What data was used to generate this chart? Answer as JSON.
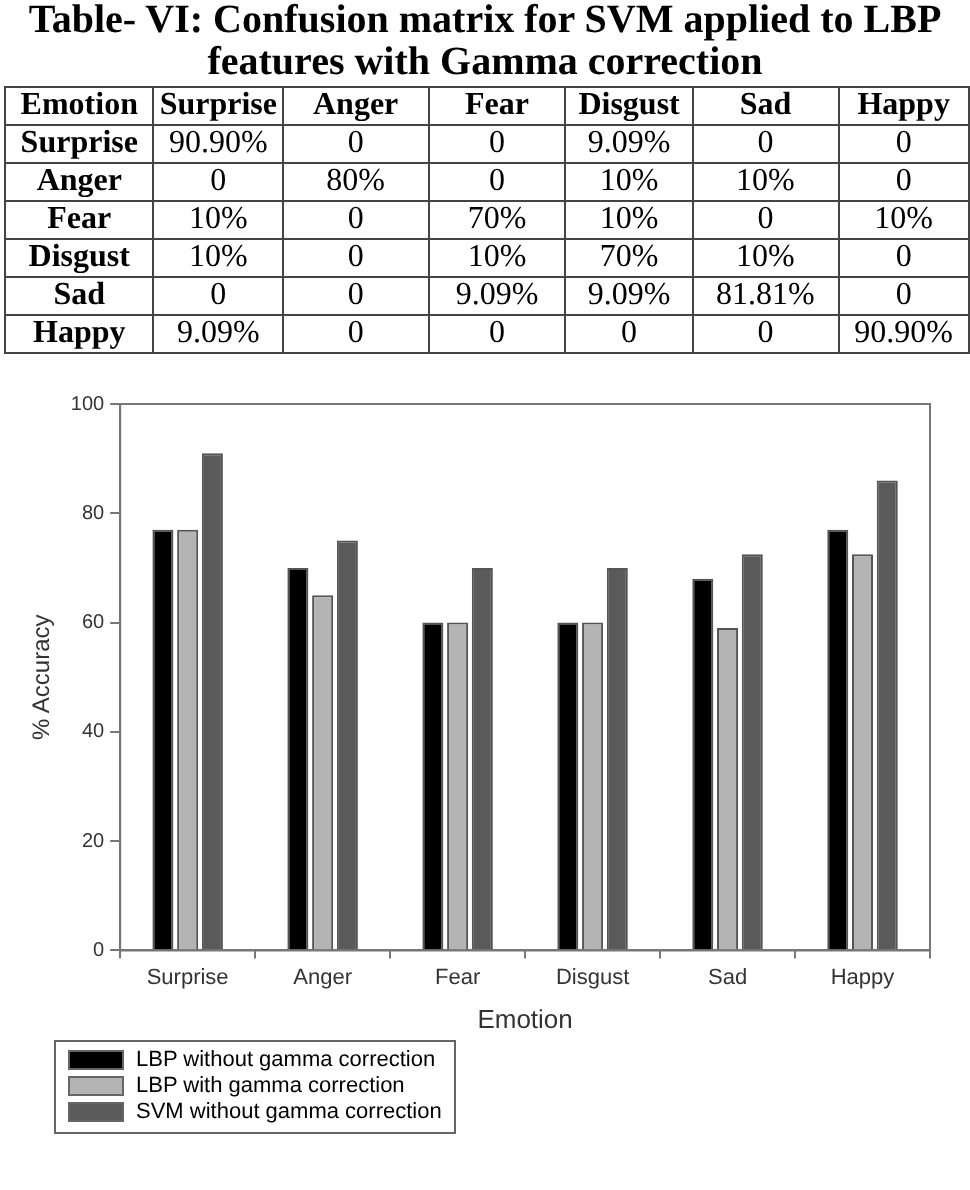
{
  "chart_data": [
    {
      "type": "other",
      "title": "Table- VI: Confusion matrix for SVM applied to LBP features with Gamma correction",
      "ylabel": "Emotion",
      "categories": [
        "Surprise",
        "Anger",
        "Fear",
        "Disgust",
        "Sad",
        "Happy"
      ],
      "y_categories": [
        "Surprise",
        "Anger",
        "Fear",
        "Disgust",
        "Sad",
        "Happy"
      ],
      "cell_labels": [
        [
          "90.90%",
          "0",
          "0",
          "9.09%",
          "0",
          "0"
        ],
        [
          "0",
          "80%",
          "0",
          "10%",
          "10%",
          "0"
        ],
        [
          "10%",
          "0",
          "70%",
          "10%",
          "0",
          "10%"
        ],
        [
          "10%",
          "0",
          "10%",
          "70%",
          "10%",
          "0"
        ],
        [
          "0",
          "0",
          "9.09%",
          "9.09%",
          "81.81%",
          "0"
        ],
        [
          "9.09%",
          "0",
          "0",
          "0",
          "0",
          "90.90%"
        ]
      ]
    },
    {
      "type": "bar",
      "xlabel": "Emotion",
      "ylabel": "% Accuracy",
      "categories": [
        "Surprise",
        "Anger",
        "Fear",
        "Disgust",
        "Sad",
        "Happy"
      ],
      "series": [
        {
          "name": "LBP without gamma correction",
          "color": "#000000",
          "values": [
            77,
            70,
            60,
            60,
            68,
            77
          ]
        },
        {
          "name": "LBP with gamma correction",
          "color": "#b4b4b4",
          "values": [
            77,
            65,
            60,
            60,
            59,
            72.5
          ]
        },
        {
          "name": "SVM without gamma correction",
          "color": "#5a5a5a",
          "values": [
            91,
            75,
            70,
            70,
            72.5,
            86
          ]
        }
      ],
      "ylim": [
        0,
        100
      ],
      "yticks": [
        0,
        20,
        40,
        60,
        80,
        100
      ],
      "grid": false,
      "legend": "bottom left"
    }
  ]
}
